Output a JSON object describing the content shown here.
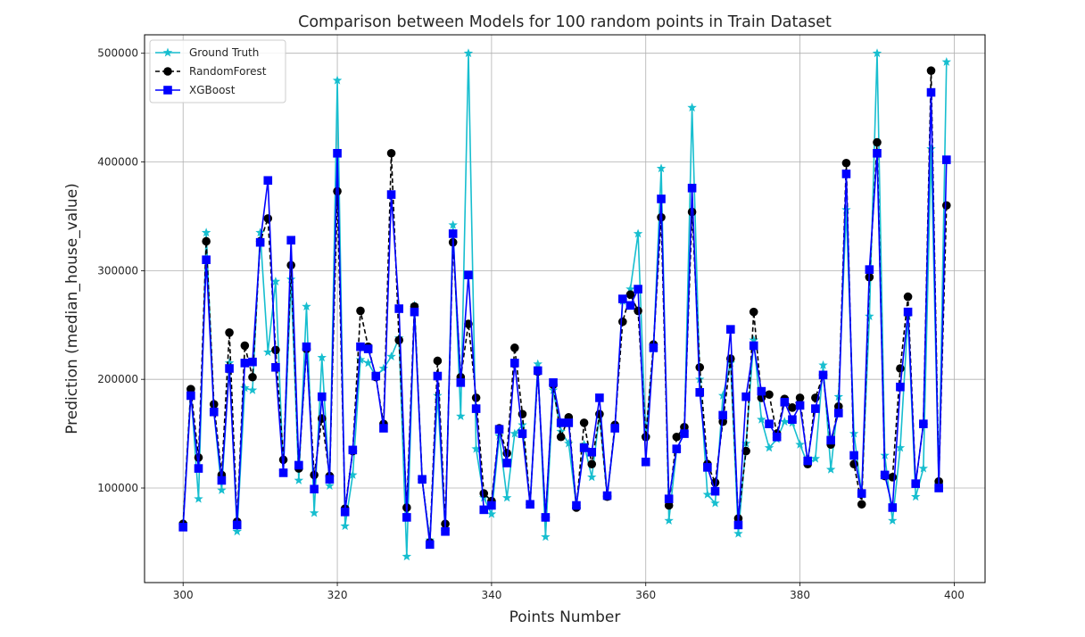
{
  "chart_data": {
    "type": "line",
    "title": "Comparison between Models for 100 random points in Train Dataset",
    "xlabel": "Points Number",
    "ylabel": "Prediction (median_house_value)",
    "xlim": [
      295,
      404
    ],
    "ylim": [
      13000,
      517000
    ],
    "xticks": [
      300,
      320,
      340,
      360,
      380,
      400
    ],
    "yticks": [
      100000,
      200000,
      300000,
      400000,
      500000
    ],
    "grid": true,
    "legend_position": "top-left",
    "x_start": 300,
    "series": [
      {
        "name": "Ground Truth",
        "color": "#17becf",
        "marker": "star",
        "linestyle": "solid",
        "values": [
          67000,
          190000,
          90000,
          335000,
          170000,
          98000,
          215000,
          60000,
          192000,
          190000,
          335000,
          225000,
          290000,
          115000,
          292000,
          107000,
          267000,
          77000,
          220000,
          102000,
          475000,
          65000,
          112000,
          218000,
          215000,
          203000,
          210000,
          221000,
          238000,
          37000,
          268000,
          107000,
          52000,
          185000,
          60000,
          342000,
          166000,
          500000,
          136000,
          91000,
          76000,
          148000,
          91000,
          150000,
          158000,
          85000,
          214000,
          55000,
          190000,
          152000,
          141000,
          83000,
          140000,
          110000,
          167000,
          92000,
          155000,
          272000,
          283000,
          334000,
          147000,
          228000,
          394000,
          70000,
          135000,
          151000,
          450000,
          200000,
          94000,
          86000,
          185000,
          215000,
          58000,
          141000,
          236000,
          163000,
          137000,
          145000,
          161000,
          160000,
          140000,
          122000,
          127000,
          213000,
          117000,
          184000,
          356000,
          150000,
          94000,
          258000,
          500000,
          130000,
          70000,
          137000,
          258000,
          92000,
          118000,
          412000,
          103000,
          492000
        ]
      },
      {
        "name": "RandomForest",
        "color": "#000000",
        "marker": "circle",
        "linestyle": "dashed",
        "values": [
          67000,
          191000,
          128000,
          327000,
          177000,
          112000,
          243000,
          69000,
          231000,
          202000,
          327000,
          348000,
          227000,
          126000,
          305000,
          118000,
          228000,
          112000,
          164000,
          111000,
          373000,
          81000,
          134000,
          263000,
          230000,
          202000,
          159000,
          408000,
          236000,
          82000,
          267000,
          108000,
          50000,
          217000,
          67000,
          326000,
          202000,
          251000,
          183000,
          95000,
          88000,
          155000,
          132000,
          229000,
          168000,
          85000,
          207000,
          73000,
          195000,
          147000,
          165000,
          82000,
          160000,
          122000,
          168000,
          92000,
          158000,
          253000,
          278000,
          263000,
          147000,
          232000,
          349000,
          84000,
          147000,
          156000,
          354000,
          211000,
          122000,
          105000,
          161000,
          219000,
          72000,
          134000,
          262000,
          183000,
          186000,
          150000,
          182000,
          174000,
          183000,
          122000,
          183000,
          204000,
          140000,
          175000,
          399000,
          122000,
          85000,
          294000,
          418000,
          111000,
          110000,
          210000,
          276000,
          104000,
          159000,
          484000,
          106000,
          360000
        ]
      },
      {
        "name": "XGBoost",
        "color": "#0000ff",
        "marker": "square",
        "linestyle": "solid",
        "values": [
          64000,
          185000,
          118000,
          310000,
          170000,
          107000,
          210000,
          66000,
          215000,
          216000,
          326000,
          383000,
          211000,
          114000,
          328000,
          121000,
          230000,
          99000,
          184000,
          108000,
          408000,
          78000,
          135000,
          230000,
          228000,
          203000,
          155000,
          370000,
          265000,
          73000,
          262000,
          108000,
          48000,
          203000,
          60000,
          334000,
          197000,
          296000,
          173000,
          80000,
          84000,
          154000,
          123000,
          215000,
          150000,
          85000,
          208000,
          73000,
          197000,
          160000,
          160000,
          84000,
          137000,
          133000,
          183000,
          93000,
          155000,
          274000,
          268000,
          283000,
          124000,
          229000,
          366000,
          90000,
          136000,
          150000,
          376000,
          188000,
          119000,
          97000,
          167000,
          246000,
          66000,
          184000,
          231000,
          189000,
          159000,
          147000,
          179000,
          163000,
          176000,
          125000,
          173000,
          204000,
          144000,
          169000,
          389000,
          130000,
          95000,
          301000,
          408000,
          112000,
          82000,
          193000,
          262000,
          104000,
          159000,
          464000,
          100000,
          402000
        ]
      }
    ]
  }
}
